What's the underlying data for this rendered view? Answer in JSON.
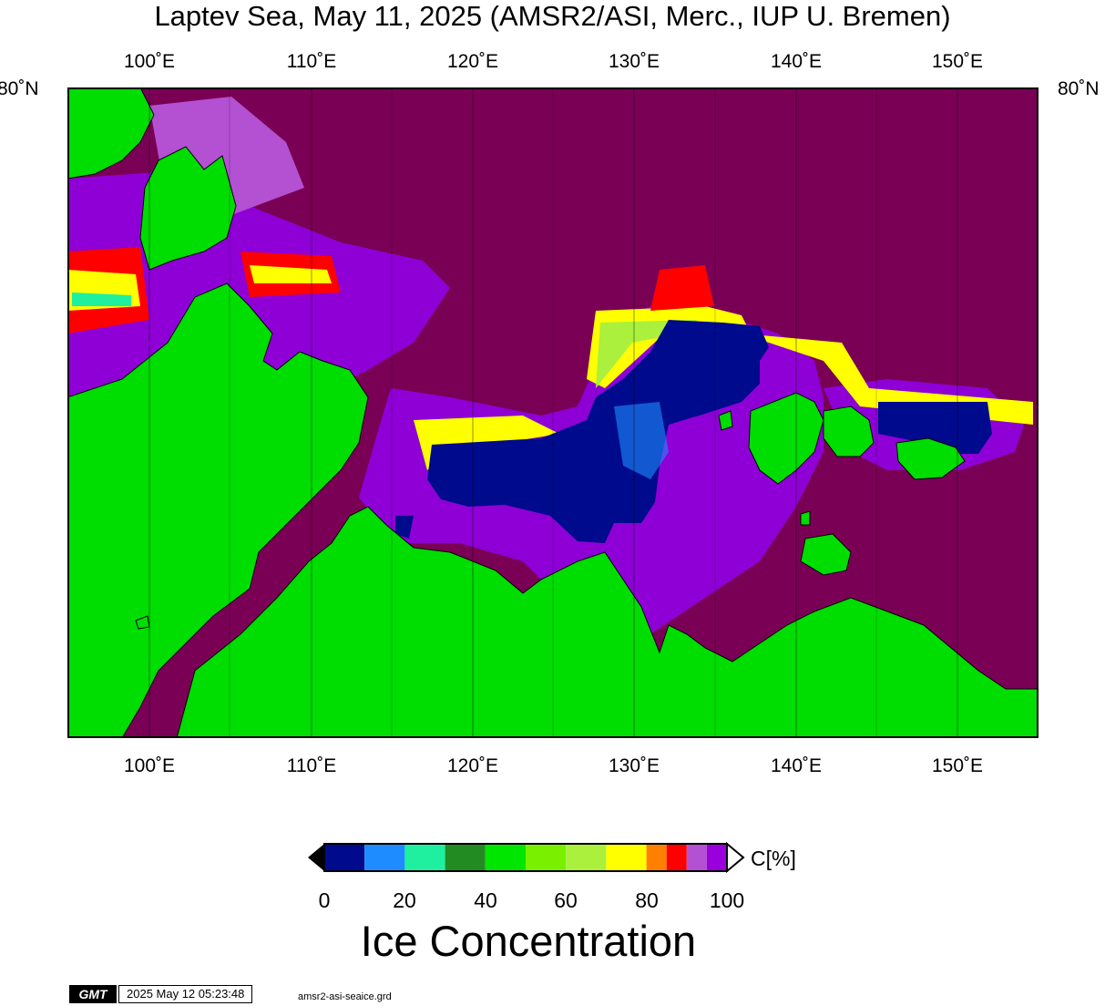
{
  "title": "Laptev Sea, May 11, 2025 (AMSR2/ASI, Merc., IUP U. Bremen)",
  "map": {
    "lon_range": [
      95,
      155
    ],
    "lon_ticks": [
      "100˚E",
      "110˚E",
      "120˚E",
      "130˚E",
      "140˚E",
      "150˚E"
    ],
    "lat_label": "80˚N",
    "colors": {
      "land": "#00dd00",
      "open_water": "#7a0055",
      "ice_full": "#000a8c",
      "ice_high": "#8e00d6",
      "gridline": "#000000"
    }
  },
  "colorbar": {
    "ticks": [
      "0",
      "20",
      "40",
      "60",
      "80",
      "100"
    ],
    "unit": "C[%]",
    "title": "Ice Concentration",
    "colors": [
      "#000a8c",
      "#1e8cff",
      "#1ef0a0",
      "#228b22",
      "#00e600",
      "#78f000",
      "#aaf03c",
      "#ffff00",
      "#ff8000",
      "#ff0000",
      "#b450d2",
      "#9900dd"
    ]
  },
  "footer": {
    "logo": "GMT",
    "timestamp": "2025 May 12 05:23:48",
    "grid_file": "amsr2-asi-seaice.grd"
  }
}
